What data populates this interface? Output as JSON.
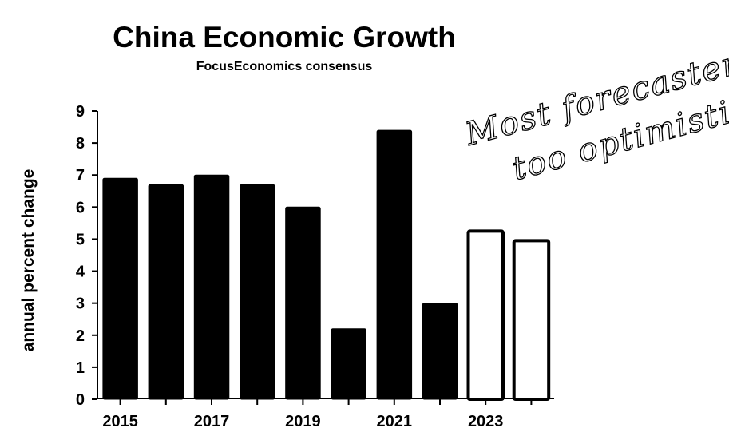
{
  "chart_data": {
    "type": "bar",
    "title": "China Economic Growth",
    "subtitle": "FocusEconomics consensus",
    "ylabel": "annual percent change",
    "xlabel": "",
    "ylim": [
      0,
      9
    ],
    "y_ticks": [
      "0",
      "1",
      "2",
      "3",
      "4",
      "5",
      "6",
      "7",
      "8",
      "9"
    ],
    "x_tick_labels": [
      "2015",
      "2017",
      "2019",
      "2021",
      "2023"
    ],
    "categories": [
      "2015",
      "2016",
      "2017",
      "2018",
      "2019",
      "2020",
      "2021",
      "2022",
      "2023",
      "2024"
    ],
    "values": [
      6.9,
      6.7,
      7.0,
      6.7,
      6.0,
      2.2,
      8.4,
      3.0,
      5.25,
      4.95
    ],
    "forecast": [
      false,
      false,
      false,
      false,
      false,
      false,
      false,
      false,
      true,
      true
    ],
    "grid": false,
    "legend": "none"
  },
  "annotation": {
    "lines": [
      "Most forecasters",
      "too optimistic."
    ]
  },
  "colors": {
    "bar_fill": "#000000",
    "forecast_fill": "#ffffff",
    "axis": "#000000",
    "text": "#000000"
  }
}
